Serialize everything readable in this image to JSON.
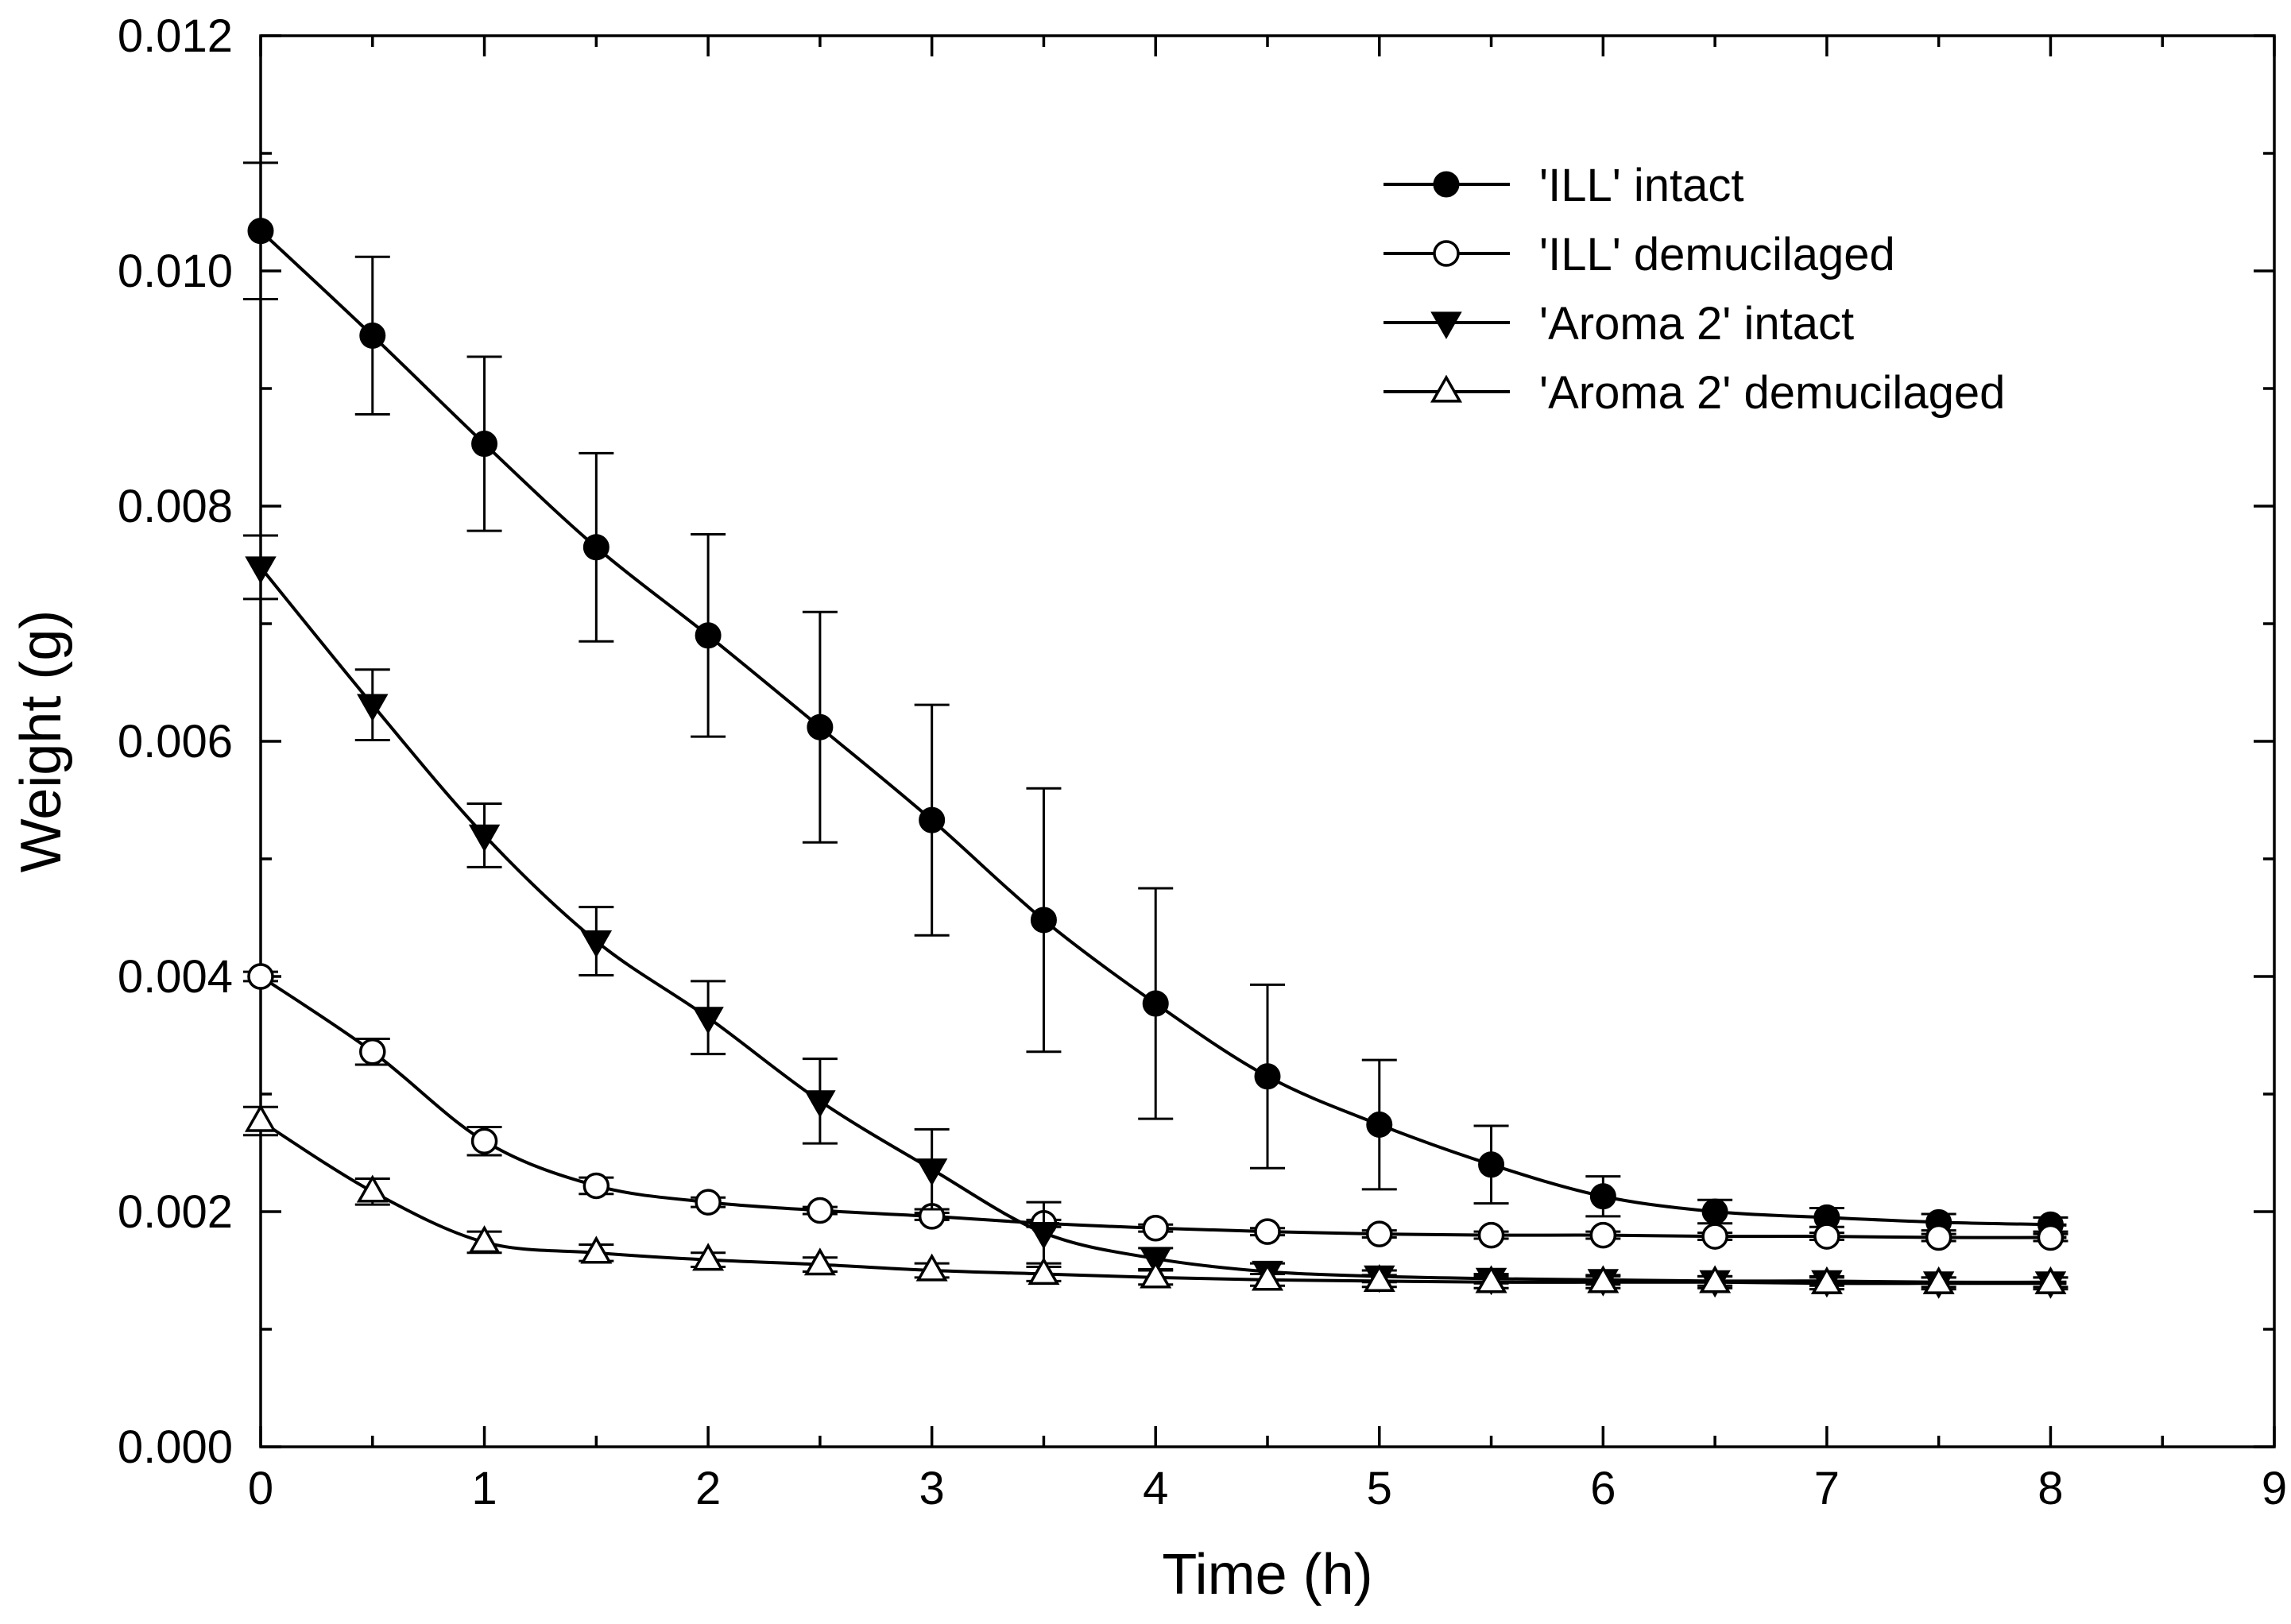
{
  "chart_data": {
    "type": "line",
    "title": "",
    "xlabel": "Time (h)",
    "ylabel": "Weight (g)",
    "xlim": [
      0,
      9
    ],
    "ylim": [
      0,
      0.012
    ],
    "xticks": [
      "0",
      "1",
      "2",
      "3",
      "4",
      "5",
      "6",
      "7",
      "8",
      "9"
    ],
    "yticks": [
      "0.000",
      "0.002",
      "0.004",
      "0.006",
      "0.008",
      "0.010",
      "0.012"
    ],
    "grid": false,
    "legend_position": "top-right",
    "x": [
      0,
      0.5,
      1,
      1.5,
      2,
      2.5,
      3,
      3.5,
      4,
      4.5,
      5,
      5.5,
      6,
      6.5,
      7,
      7.5,
      8
    ],
    "series": [
      {
        "name": "'ILL' intact",
        "marker": "filled-circle",
        "values": [
          0.01034,
          0.00945,
          0.00853,
          0.00765,
          0.0069,
          0.00612,
          0.00533,
          0.00448,
          0.00377,
          0.00315,
          0.00274,
          0.0024,
          0.00213,
          0.002,
          0.00195,
          0.00191,
          0.00189
        ],
        "errors": [
          0.00058,
          0.00067,
          0.00074,
          0.0008,
          0.00086,
          0.00098,
          0.00098,
          0.00112,
          0.00098,
          0.00078,
          0.00055,
          0.00033,
          0.00017,
          0.0001,
          8e-05,
          7e-05,
          6e-05
        ]
      },
      {
        "name": "'ILL' demucilaged",
        "marker": "open-circle",
        "values": [
          0.004,
          0.00336,
          0.0026,
          0.00222,
          0.00208,
          0.00201,
          0.00196,
          0.0019,
          0.00186,
          0.00183,
          0.00181,
          0.0018,
          0.0018,
          0.00179,
          0.00179,
          0.00178,
          0.00178
        ],
        "errors": [
          4e-05,
          0.00011,
          0.00012,
          7e-05,
          4e-05,
          3e-05,
          3e-05,
          3e-05,
          3e-05,
          3e-05,
          3e-05,
          3e-05,
          3e-05,
          3e-05,
          3e-05,
          3e-05,
          3e-05
        ]
      },
      {
        "name": "'Aroma 2' intact",
        "marker": "filled-triangle-down",
        "values": [
          0.00748,
          0.00631,
          0.0052,
          0.0043,
          0.00365,
          0.00294,
          0.00236,
          0.00182,
          0.0016,
          0.00149,
          0.00145,
          0.00143,
          0.00142,
          0.00141,
          0.00141,
          0.0014,
          0.0014
        ],
        "errors": [
          0.00027,
          0.0003,
          0.00027,
          0.00029,
          0.00031,
          0.00036,
          0.00034,
          0.00026,
          9e-05,
          7e-05,
          5e-05,
          4e-05,
          4e-05,
          4e-05,
          4e-05,
          4e-05,
          4e-05
        ]
      },
      {
        "name": "'Aroma 2' demucilaged",
        "marker": "open-triangle-up",
        "values": [
          0.00277,
          0.00217,
          0.00174,
          0.00165,
          0.00159,
          0.00155,
          0.0015,
          0.00147,
          0.00144,
          0.00142,
          0.00141,
          0.0014,
          0.0014,
          0.0014,
          0.00139,
          0.00139,
          0.00139
        ],
        "errors": [
          0.00012,
          0.00011,
          9e-05,
          7e-05,
          6e-05,
          6e-05,
          6e-05,
          6e-05,
          6e-05,
          5e-05,
          5e-05,
          5e-05,
          5e-05,
          5e-05,
          5e-05,
          5e-05,
          5e-05
        ]
      }
    ]
  }
}
